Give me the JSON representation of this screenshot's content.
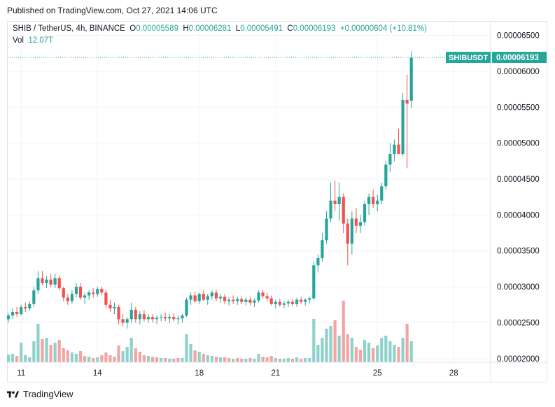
{
  "header": {
    "published": "Published on TradingView.com, Oct 27, 2021 14:06 UTC"
  },
  "legend": {
    "symbol": "SHIB / TetherUS, 4h, BINANCE",
    "o_label": "O",
    "o_value": "0.00005589",
    "h_label": "H",
    "h_value": "0.00006281",
    "l_label": "L",
    "l_value": "0.00005491",
    "c_label": "C",
    "c_value": "0.00006193",
    "change": "+0.00000604 (+10.81%)",
    "vol_label": "Vol",
    "vol_value": "12.07T"
  },
  "badge": {
    "ticker": "SHIBUSDT",
    "price": "0.00006193"
  },
  "footer": {
    "brand": "TradingView"
  },
  "colors": {
    "up": "#26a69a",
    "down": "#ef5350",
    "vol_up": "#8fd1cb",
    "vol_down": "#f3a4a3",
    "grid": "#f0f3fa",
    "badge": "#26a69a"
  },
  "chart_data": {
    "type": "candlestick",
    "timeframe": "4h",
    "ylim": [
      1.95e-05,
      6.69e-05
    ],
    "y_ticks": [
      "0.00002000",
      "0.00002500",
      "0.00003000",
      "0.00003500",
      "0.00004000",
      "0.00004500",
      "0.00005000",
      "0.00005500",
      "0.00006000",
      "0.00006500"
    ],
    "x_ticks": [
      {
        "label": "11",
        "index": 3
      },
      {
        "label": "14",
        "index": 21
      },
      {
        "label": "18",
        "index": 45
      },
      {
        "label": "21",
        "index": 63
      },
      {
        "label": "25",
        "index": 87
      },
      {
        "label": "28",
        "index": 105
      }
    ],
    "candles": [
      [
        2.55,
        2.63,
        2.5,
        2.6
      ],
      [
        2.6,
        2.7,
        2.55,
        2.65
      ],
      [
        2.65,
        2.72,
        2.58,
        2.62
      ],
      [
        2.62,
        2.75,
        2.6,
        2.72
      ],
      [
        2.72,
        2.78,
        2.65,
        2.7
      ],
      [
        2.7,
        2.8,
        2.66,
        2.76
      ],
      [
        2.76,
        3.0,
        2.72,
        2.95
      ],
      [
        2.95,
        3.22,
        2.9,
        3.12
      ],
      [
        3.12,
        3.22,
        3.02,
        3.05
      ],
      [
        3.05,
        3.15,
        2.98,
        3.1
      ],
      [
        3.1,
        3.18,
        3.0,
        3.03
      ],
      [
        3.03,
        3.18,
        2.98,
        3.12
      ],
      [
        3.12,
        3.16,
        2.95,
        2.98
      ],
      [
        2.98,
        3.0,
        2.8,
        2.85
      ],
      [
        2.85,
        2.9,
        2.75,
        2.8
      ],
      [
        2.8,
        2.95,
        2.76,
        2.9
      ],
      [
        2.9,
        3.05,
        2.85,
        3.0
      ],
      [
        3.0,
        3.05,
        2.82,
        2.85
      ],
      [
        2.85,
        2.92,
        2.76,
        2.88
      ],
      [
        2.88,
        2.95,
        2.82,
        2.92
      ],
      [
        2.92,
        2.98,
        2.85,
        2.9
      ],
      [
        2.9,
        3.0,
        2.86,
        2.97
      ],
      [
        2.97,
        3.0,
        2.88,
        2.92
      ],
      [
        2.92,
        2.96,
        2.7,
        2.75
      ],
      [
        2.75,
        2.82,
        2.65,
        2.7
      ],
      [
        2.7,
        2.78,
        2.62,
        2.72
      ],
      [
        2.72,
        2.75,
        2.48,
        2.55
      ],
      [
        2.55,
        2.62,
        2.45,
        2.5
      ],
      [
        2.5,
        2.58,
        2.42,
        2.55
      ],
      [
        2.55,
        2.78,
        2.5,
        2.68
      ],
      [
        2.68,
        2.72,
        2.5,
        2.55
      ],
      [
        2.55,
        2.66,
        2.48,
        2.62
      ],
      [
        2.62,
        2.68,
        2.52,
        2.55
      ],
      [
        2.55,
        2.62,
        2.5,
        2.58
      ],
      [
        2.58,
        2.62,
        2.5,
        2.55
      ],
      [
        2.55,
        2.6,
        2.48,
        2.57
      ],
      [
        2.57,
        2.62,
        2.52,
        2.58
      ],
      [
        2.58,
        2.64,
        2.52,
        2.56
      ],
      [
        2.56,
        2.62,
        2.5,
        2.58
      ],
      [
        2.58,
        2.63,
        2.52,
        2.55
      ],
      [
        2.55,
        2.6,
        2.48,
        2.56
      ],
      [
        2.56,
        2.62,
        2.5,
        2.6
      ],
      [
        2.6,
        2.85,
        2.58,
        2.82
      ],
      [
        2.82,
        2.92,
        2.75,
        2.88
      ],
      [
        2.88,
        2.93,
        2.78,
        2.8
      ],
      [
        2.8,
        2.92,
        2.76,
        2.9
      ],
      [
        2.9,
        2.95,
        2.8,
        2.82
      ],
      [
        2.82,
        2.9,
        2.75,
        2.87
      ],
      [
        2.87,
        2.95,
        2.82,
        2.92
      ],
      [
        2.92,
        2.96,
        2.8,
        2.84
      ],
      [
        2.84,
        2.9,
        2.78,
        2.86
      ],
      [
        2.86,
        2.9,
        2.76,
        2.8
      ],
      [
        2.8,
        2.86,
        2.74,
        2.82
      ],
      [
        2.82,
        2.88,
        2.76,
        2.8
      ],
      [
        2.8,
        2.86,
        2.75,
        2.83
      ],
      [
        2.83,
        2.87,
        2.76,
        2.79
      ],
      [
        2.79,
        2.85,
        2.74,
        2.82
      ],
      [
        2.82,
        2.86,
        2.74,
        2.78
      ],
      [
        2.78,
        2.84,
        2.72,
        2.81
      ],
      [
        2.81,
        2.95,
        2.78,
        2.92
      ],
      [
        2.92,
        2.96,
        2.84,
        2.87
      ],
      [
        2.87,
        2.92,
        2.8,
        2.84
      ],
      [
        2.84,
        2.88,
        2.74,
        2.76
      ],
      [
        2.76,
        2.82,
        2.7,
        2.79
      ],
      [
        2.79,
        2.83,
        2.72,
        2.75
      ],
      [
        2.75,
        2.8,
        2.7,
        2.77
      ],
      [
        2.77,
        2.82,
        2.72,
        2.79
      ],
      [
        2.79,
        2.83,
        2.73,
        2.76
      ],
      [
        2.76,
        2.85,
        2.72,
        2.82
      ],
      [
        2.82,
        2.86,
        2.76,
        2.79
      ],
      [
        2.79,
        2.84,
        2.74,
        2.82
      ],
      [
        2.82,
        2.86,
        2.77,
        2.84
      ],
      [
        2.84,
        3.35,
        2.82,
        3.3
      ],
      [
        3.3,
        3.45,
        3.2,
        3.4
      ],
      [
        3.4,
        3.75,
        3.35,
        3.65
      ],
      [
        3.65,
        4.05,
        3.6,
        3.95
      ],
      [
        3.95,
        4.45,
        3.9,
        4.2
      ],
      [
        4.2,
        4.48,
        4.05,
        4.15
      ],
      [
        4.15,
        4.45,
        3.92,
        4.25
      ],
      [
        4.25,
        4.3,
        3.75,
        3.88
      ],
      [
        3.88,
        3.95,
        3.3,
        3.6
      ],
      [
        3.6,
        4.05,
        3.45,
        3.95
      ],
      [
        3.95,
        4.1,
        3.75,
        3.85
      ],
      [
        3.85,
        4.0,
        3.75,
        3.9
      ],
      [
        3.9,
        4.2,
        3.85,
        4.15
      ],
      [
        4.15,
        4.3,
        4.0,
        4.25
      ],
      [
        4.25,
        4.35,
        4.1,
        4.15
      ],
      [
        4.15,
        4.28,
        4.05,
        4.2
      ],
      [
        4.2,
        4.45,
        4.15,
        4.4
      ],
      [
        4.4,
        4.75,
        4.35,
        4.7
      ],
      [
        4.7,
        5.0,
        4.6,
        4.85
      ],
      [
        4.85,
        5.05,
        4.75,
        4.98
      ],
      [
        4.98,
        5.2,
        4.85,
        4.85
      ],
      [
        4.85,
        5.7,
        4.82,
        5.6
      ],
      [
        5.6,
        5.95,
        4.65,
        5.55
      ],
      [
        5.59,
        6.28,
        5.49,
        6.19
      ]
    ],
    "volume": [
      [
        "u",
        0.11
      ],
      [
        "u",
        0.12
      ],
      [
        "d",
        0.09
      ],
      [
        "u",
        0.28
      ],
      [
        "u",
        0.1
      ],
      [
        "u",
        0.07
      ],
      [
        "u",
        0.3
      ],
      [
        "u",
        0.55
      ],
      [
        "d",
        0.33
      ],
      [
        "u",
        0.35
      ],
      [
        "d",
        0.25
      ],
      [
        "u",
        0.28
      ],
      [
        "d",
        0.32
      ],
      [
        "d",
        0.2
      ],
      [
        "d",
        0.17
      ],
      [
        "u",
        0.14
      ],
      [
        "u",
        0.12
      ],
      [
        "d",
        0.16
      ],
      [
        "d",
        0.09
      ],
      [
        "u",
        0.08
      ],
      [
        "d",
        0.06
      ],
      [
        "u",
        0.07
      ],
      [
        "d",
        0.1
      ],
      [
        "d",
        0.14
      ],
      [
        "d",
        0.1
      ],
      [
        "d",
        0.08
      ],
      [
        "d",
        0.24
      ],
      [
        "u",
        0.16
      ],
      [
        "u",
        0.22
      ],
      [
        "u",
        0.35
      ],
      [
        "d",
        0.2
      ],
      [
        "d",
        0.15
      ],
      [
        "d",
        0.1
      ],
      [
        "u",
        0.09
      ],
      [
        "d",
        0.08
      ],
      [
        "d",
        0.07
      ],
      [
        "u",
        0.06
      ],
      [
        "d",
        0.06
      ],
      [
        "u",
        0.05
      ],
      [
        "d",
        0.05
      ],
      [
        "d",
        0.06
      ],
      [
        "u",
        0.06
      ],
      [
        "u",
        0.4
      ],
      [
        "u",
        0.26
      ],
      [
        "d",
        0.17
      ],
      [
        "u",
        0.15
      ],
      [
        "d",
        0.12
      ],
      [
        "u",
        0.1
      ],
      [
        "u",
        0.09
      ],
      [
        "d",
        0.08
      ],
      [
        "u",
        0.07
      ],
      [
        "d",
        0.07
      ],
      [
        "d",
        0.06
      ],
      [
        "u",
        0.05
      ],
      [
        "d",
        0.06
      ],
      [
        "d",
        0.05
      ],
      [
        "u",
        0.05
      ],
      [
        "d",
        0.06
      ],
      [
        "u",
        0.05
      ],
      [
        "u",
        0.12
      ],
      [
        "d",
        0.08
      ],
      [
        "d",
        0.07
      ],
      [
        "d",
        0.09
      ],
      [
        "u",
        0.06
      ],
      [
        "d",
        0.05
      ],
      [
        "u",
        0.05
      ],
      [
        "u",
        0.06
      ],
      [
        "d",
        0.05
      ],
      [
        "u",
        0.07
      ],
      [
        "d",
        0.05
      ],
      [
        "u",
        0.06
      ],
      [
        "u",
        0.06
      ],
      [
        "u",
        0.62
      ],
      [
        "u",
        0.25
      ],
      [
        "u",
        0.35
      ],
      [
        "u",
        0.48
      ],
      [
        "u",
        0.52
      ],
      [
        "d",
        0.6
      ],
      [
        "u",
        0.38
      ],
      [
        "d",
        0.88
      ],
      [
        "d",
        0.4
      ],
      [
        "u",
        0.35
      ],
      [
        "d",
        0.22
      ],
      [
        "d",
        0.18
      ],
      [
        "u",
        0.32
      ],
      [
        "u",
        0.28
      ],
      [
        "d",
        0.2
      ],
      [
        "u",
        0.24
      ],
      [
        "u",
        0.35
      ],
      [
        "u",
        0.38
      ],
      [
        "u",
        0.3
      ],
      [
        "u",
        0.25
      ],
      [
        "d",
        0.22
      ],
      [
        "u",
        0.35
      ],
      [
        "d",
        0.55
      ],
      [
        "u",
        0.3
      ]
    ]
  }
}
